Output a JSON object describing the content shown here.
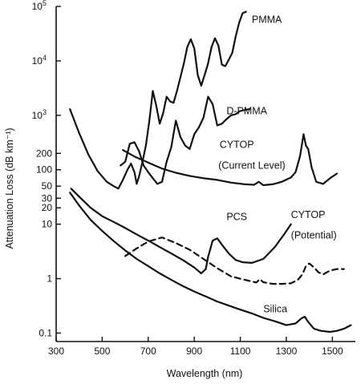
{
  "chart_data": {
    "type": "line",
    "xlabel": "Wavelength (nm)",
    "ylabel": "Attenuation Loss (dB km⁻¹)",
    "xlim": [
      300,
      1600
    ],
    "ylim": [
      0.07,
      100000
    ],
    "y_scale": "log",
    "grid": false,
    "x_ticks": [
      "300",
      "500",
      "700",
      "900",
      "1100",
      "1300",
      "1500"
    ],
    "x_tick_values": [
      300,
      500,
      700,
      900,
      1100,
      1300,
      1500
    ],
    "y_ticks": [
      {
        "value": 100000,
        "base": "10",
        "exp": "5"
      },
      {
        "value": 10000,
        "base": "10",
        "exp": "4"
      },
      {
        "value": 1000,
        "base": "10",
        "exp": "3"
      },
      {
        "value": 200,
        "base": "200",
        "exp": ""
      },
      {
        "value": 100,
        "base": "100",
        "exp": ""
      },
      {
        "value": 50,
        "base": "50",
        "exp": ""
      },
      {
        "value": 30,
        "base": "30",
        "exp": ""
      },
      {
        "value": 20,
        "base": "20",
        "exp": ""
      },
      {
        "value": 10,
        "base": "10",
        "exp": ""
      },
      {
        "value": 1,
        "base": "1",
        "exp": ""
      },
      {
        "value": 0.1,
        "base": "0.1",
        "exp": ""
      }
    ],
    "series": [
      {
        "name": "PMMA",
        "style": "solid",
        "x": [
          360,
          400,
          440,
          480,
          520,
          550,
          570,
          590,
          610,
          625,
          640,
          650,
          660,
          675,
          690,
          705,
          720,
          735,
          750,
          765,
          780,
          795,
          810,
          825,
          840,
          855,
          870,
          885,
          900,
          915,
          930,
          945,
          960,
          975,
          990,
          1005,
          1020,
          1035,
          1050,
          1065,
          1080,
          1095,
          1110,
          1125
        ],
        "y": [
          1300,
          470,
          190,
          95,
          60,
          50,
          45,
          65,
          100,
          130,
          90,
          55,
          75,
          140,
          280,
          800,
          2800,
          1500,
          700,
          1100,
          2200,
          1800,
          1700,
          2800,
          5000,
          9000,
          18000,
          25000,
          17000,
          5500,
          3500,
          5500,
          9000,
          18000,
          26000,
          19000,
          8500,
          8000,
          10500,
          14000,
          28000,
          50000,
          75000,
          80000
        ]
      },
      {
        "name": "D-PMMA",
        "style": "solid",
        "x": [
          580,
          600,
          620,
          640,
          660,
          680,
          700,
          720,
          740,
          760,
          780,
          800,
          820,
          840,
          860,
          880,
          900,
          920,
          940,
          960,
          980,
          1000,
          1020,
          1040,
          1060,
          1080,
          1100,
          1120,
          1140
        ],
        "y": [
          120,
          140,
          300,
          320,
          220,
          120,
          90,
          70,
          55,
          60,
          140,
          260,
          800,
          400,
          280,
          240,
          450,
          600,
          900,
          2200,
          1600,
          650,
          700,
          850,
          1000,
          1050,
          1200,
          1250,
          1300
        ]
      },
      {
        "name": "CYTOP (Current Level)",
        "style": "solid",
        "x": [
          590,
          640,
          700,
          760,
          820,
          880,
          940,
          1000,
          1060,
          1120,
          1160,
          1180,
          1200,
          1240,
          1280,
          1320,
          1340,
          1360,
          1375,
          1385,
          1395,
          1410,
          1430,
          1460,
          1490,
          1520
        ],
        "y": [
          230,
          175,
          135,
          105,
          88,
          77,
          70,
          65,
          58,
          54,
          53,
          60,
          52,
          54,
          60,
          72,
          90,
          180,
          450,
          280,
          240,
          110,
          60,
          55,
          70,
          85
        ]
      },
      {
        "name": "PCS",
        "style": "solid",
        "x": [
          365,
          400,
          450,
          500,
          550,
          600,
          650,
          700,
          750,
          800,
          850,
          900,
          930,
          950,
          960,
          980,
          1000,
          1020,
          1050,
          1080,
          1110,
          1150,
          1200,
          1250,
          1290,
          1320
        ],
        "y": [
          45,
          32,
          20,
          14,
          11,
          8.5,
          6.5,
          5,
          3.8,
          2.9,
          2.2,
          1.6,
          1.25,
          1.5,
          2.5,
          5,
          5.5,
          4.2,
          2.9,
          2.2,
          2.0,
          1.95,
          2.3,
          3.8,
          6.5,
          10
        ]
      },
      {
        "name": "CYTOP (Potential)",
        "style": "dashed",
        "x": [
          600,
          650,
          700,
          760,
          820,
          880,
          940,
          1000,
          1060,
          1120,
          1170,
          1185,
          1200,
          1240,
          1280,
          1320,
          1350,
          1370,
          1385,
          1400,
          1420,
          1440,
          1460,
          1490,
          1520,
          1550
        ],
        "y": [
          2.6,
          3.6,
          4.8,
          5.7,
          4.5,
          3.4,
          2.3,
          1.55,
          1.1,
          0.95,
          0.85,
          0.98,
          0.86,
          0.8,
          0.8,
          0.82,
          0.95,
          1.2,
          1.7,
          1.9,
          1.6,
          1.3,
          1.2,
          1.4,
          1.5,
          1.5
        ]
      },
      {
        "name": "Silica",
        "style": "solid",
        "x": [
          360,
          400,
          450,
          500,
          550,
          600,
          650,
          700,
          750,
          800,
          850,
          900,
          950,
          1000,
          1050,
          1100,
          1150,
          1200,
          1250,
          1300,
          1340,
          1365,
          1380,
          1395,
          1420,
          1450,
          1490,
          1520,
          1550,
          1580
        ],
        "y": [
          38,
          22,
          12,
          7.5,
          4.9,
          3.3,
          2.3,
          1.7,
          1.25,
          0.95,
          0.73,
          0.58,
          0.47,
          0.38,
          0.32,
          0.27,
          0.23,
          0.19,
          0.165,
          0.14,
          0.15,
          0.185,
          0.2,
          0.16,
          0.12,
          0.11,
          0.105,
          0.11,
          0.12,
          0.14
        ]
      }
    ],
    "annotations": [
      {
        "text": "PMMA",
        "x": 1150,
        "y": 50000
      },
      {
        "text": "D-PMMA",
        "x": 1040,
        "y": 1050
      },
      {
        "text": "CYTOP",
        "x": 1010,
        "y": 250
      },
      {
        "text": "(Current Level)",
        "x": 1005,
        "y": 105
      },
      {
        "text": "PCS",
        "x": 1040,
        "y": 12
      },
      {
        "text": "CYTOP",
        "x": 1320,
        "y": 13
      },
      {
        "text": "(Potential)",
        "x": 1320,
        "y": 5.5
      },
      {
        "text": "Silica",
        "x": 1200,
        "y": 0.24
      }
    ]
  }
}
